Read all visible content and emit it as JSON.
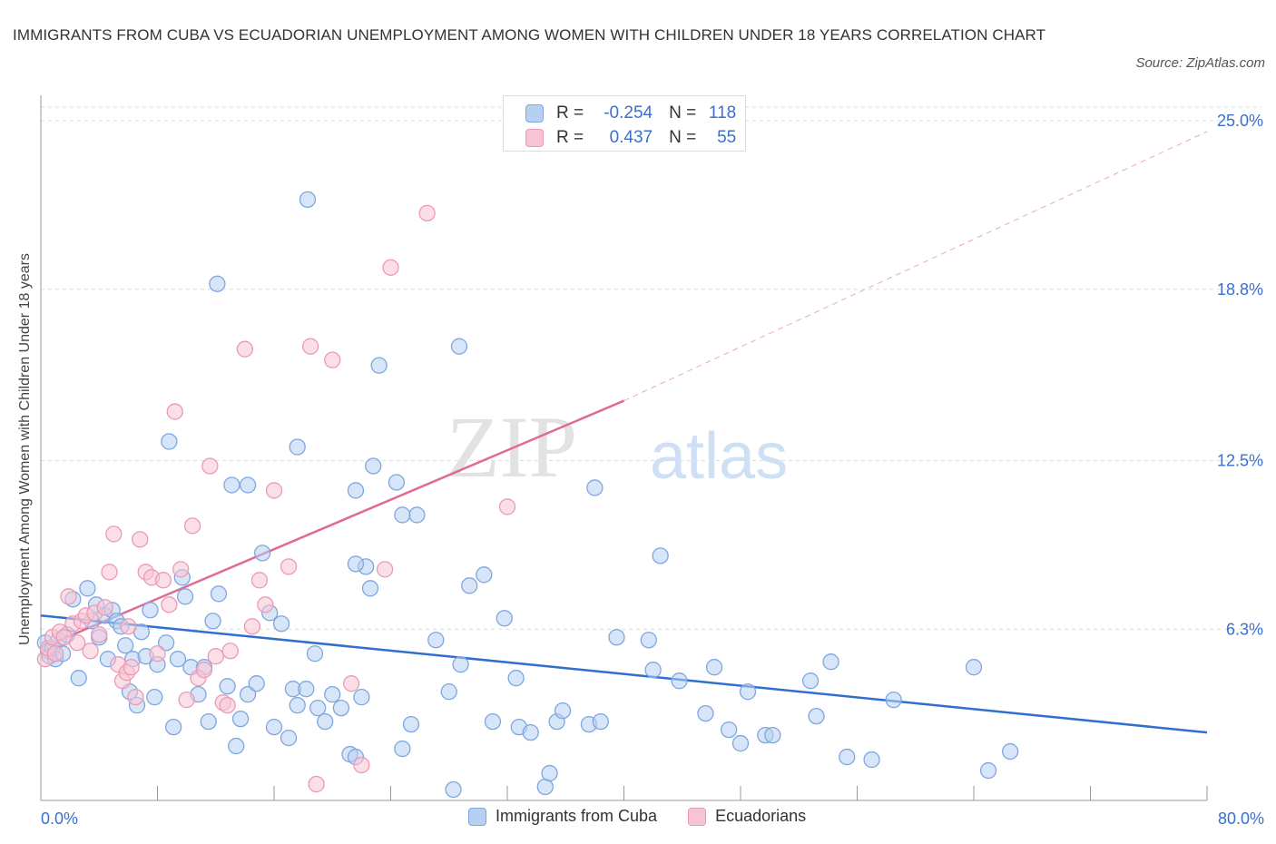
{
  "title": "IMMIGRANTS FROM CUBA VS ECUADORIAN UNEMPLOYMENT AMONG WOMEN WITH CHILDREN UNDER 18 YEARS CORRELATION CHART",
  "source": "Source: ZipAtlas.com",
  "watermark": {
    "zip": "ZIP",
    "atlas": "atlas"
  },
  "legend_top": {
    "rows": [
      {
        "r_label": "R =",
        "r_value": "-0.254",
        "n_label": "N =",
        "n_value": "118"
      },
      {
        "r_label": "R =",
        "r_value": "0.437",
        "n_label": "N =",
        "n_value": "55"
      }
    ]
  },
  "colors": {
    "blue_fill": "#b7d0f2",
    "blue_stroke": "#7fa6e0",
    "blue_line": "#2f6fd0",
    "pink_fill": "#f7c4d3",
    "pink_stroke": "#ec9ab4",
    "pink_line": "#e06a93",
    "tick_text": "#3a6fd0",
    "grid": "#dddddd"
  },
  "chart_data": {
    "type": "scatter",
    "title": "IMMIGRANTS FROM CUBA VS ECUADORIAN UNEMPLOYMENT AMONG WOMEN WITH CHILDREN UNDER 18 YEARS CORRELATION CHART",
    "xlabel": "",
    "ylabel": "Unemployment Among Women with Children Under 18 years",
    "xlim": [
      0,
      80
    ],
    "ylim": [
      0,
      25
    ],
    "x_tick_labels": [
      "0.0%",
      "80.0%"
    ],
    "y_ticks": [
      6.3,
      12.5,
      18.8,
      25.0
    ],
    "y_tick_labels": [
      "6.3%",
      "12.5%",
      "18.8%",
      "25.0%"
    ],
    "grid": "horizontal dashed",
    "legend_position": "bottom",
    "series": [
      {
        "name": "Immigrants from Cuba",
        "color": "#7fa6e0",
        "r": -0.254,
        "n": 118,
        "trend": {
          "x": [
            0,
            80
          ],
          "y": [
            6.8,
            2.5
          ]
        },
        "points": [
          [
            0.3,
            5.8
          ],
          [
            0.5,
            5.5
          ],
          [
            0.6,
            5.3
          ],
          [
            0.8,
            5.6
          ],
          [
            1.0,
            5.2
          ],
          [
            1.2,
            5.9
          ],
          [
            1.5,
            5.4
          ],
          [
            1.8,
            6.1
          ],
          [
            2.2,
            7.4
          ],
          [
            2.6,
            4.5
          ],
          [
            3.2,
            7.8
          ],
          [
            3.5,
            6.6
          ],
          [
            3.8,
            7.2
          ],
          [
            4.0,
            6.0
          ],
          [
            4.4,
            6.8
          ],
          [
            4.6,
            5.2
          ],
          [
            4.9,
            7.0
          ],
          [
            5.2,
            6.6
          ],
          [
            5.5,
            6.4
          ],
          [
            5.8,
            5.7
          ],
          [
            6.1,
            4.0
          ],
          [
            6.3,
            5.2
          ],
          [
            6.6,
            3.5
          ],
          [
            6.9,
            6.2
          ],
          [
            7.2,
            5.3
          ],
          [
            7.5,
            7.0
          ],
          [
            7.8,
            3.8
          ],
          [
            8.0,
            5.0
          ],
          [
            8.6,
            5.8
          ],
          [
            9.1,
            2.7
          ],
          [
            9.4,
            5.2
          ],
          [
            9.7,
            8.2
          ],
          [
            9.9,
            7.5
          ],
          [
            10.3,
            4.9
          ],
          [
            10.8,
            3.9
          ],
          [
            11.2,
            4.9
          ],
          [
            11.5,
            2.9
          ],
          [
            11.8,
            6.6
          ],
          [
            12.2,
            7.6
          ],
          [
            12.8,
            4.2
          ],
          [
            13.1,
            11.6
          ],
          [
            13.4,
            2.0
          ],
          [
            13.7,
            3.0
          ],
          [
            14.2,
            3.9
          ],
          [
            14.8,
            4.3
          ],
          [
            15.2,
            9.1
          ],
          [
            15.7,
            6.9
          ],
          [
            16.0,
            2.7
          ],
          [
            16.5,
            6.5
          ],
          [
            17.0,
            2.3
          ],
          [
            17.3,
            4.1
          ],
          [
            17.6,
            3.5
          ],
          [
            18.2,
            4.1
          ],
          [
            18.8,
            5.4
          ],
          [
            19.0,
            3.4
          ],
          [
            19.5,
            2.9
          ],
          [
            20.0,
            3.9
          ],
          [
            20.6,
            3.4
          ],
          [
            21.2,
            1.7
          ],
          [
            21.6,
            1.6
          ],
          [
            22.0,
            3.8
          ],
          [
            22.3,
            8.6
          ],
          [
            22.6,
            7.8
          ],
          [
            23.2,
            16.0
          ],
          [
            24.4,
            11.7
          ],
          [
            24.8,
            1.9
          ],
          [
            25.4,
            2.8
          ],
          [
            25.8,
            10.5
          ],
          [
            27.1,
            5.9
          ],
          [
            28.0,
            4.0
          ],
          [
            28.3,
            0.4
          ],
          [
            28.8,
            5.0
          ],
          [
            29.4,
            7.9
          ],
          [
            30.4,
            8.3
          ],
          [
            31.0,
            2.9
          ],
          [
            31.8,
            6.7
          ],
          [
            32.6,
            4.5
          ],
          [
            32.8,
            2.7
          ],
          [
            33.6,
            2.5
          ],
          [
            34.6,
            0.5
          ],
          [
            34.9,
            1.0
          ],
          [
            35.4,
            2.9
          ],
          [
            35.8,
            3.3
          ],
          [
            37.6,
            2.8
          ],
          [
            38.0,
            11.5
          ],
          [
            38.4,
            2.9
          ],
          [
            39.5,
            6.0
          ],
          [
            41.7,
            5.9
          ],
          [
            42.0,
            4.8
          ],
          [
            42.5,
            9.0
          ],
          [
            43.8,
            4.4
          ],
          [
            45.6,
            3.2
          ],
          [
            46.2,
            4.9
          ],
          [
            47.2,
            2.6
          ],
          [
            48.0,
            2.1
          ],
          [
            48.5,
            4.0
          ],
          [
            49.7,
            2.4
          ],
          [
            50.2,
            2.4
          ],
          [
            52.8,
            4.4
          ],
          [
            53.2,
            3.1
          ],
          [
            54.2,
            5.1
          ],
          [
            55.3,
            1.6
          ],
          [
            57.0,
            1.5
          ],
          [
            58.5,
            3.7
          ],
          [
            64.0,
            4.9
          ],
          [
            65.0,
            1.1
          ],
          [
            66.5,
            1.8
          ],
          [
            8.8,
            13.2
          ],
          [
            12.1,
            19.0
          ],
          [
            18.3,
            22.1
          ],
          [
            21.6,
            11.4
          ],
          [
            22.8,
            12.3
          ],
          [
            24.8,
            10.5
          ],
          [
            28.7,
            16.7
          ],
          [
            21.6,
            8.7
          ],
          [
            17.6,
            13.0
          ],
          [
            14.2,
            11.6
          ]
        ]
      },
      {
        "name": "Ecuadorians",
        "color": "#ec9ab4",
        "r": 0.437,
        "n": 55,
        "trend": {
          "x": [
            0,
            40
          ],
          "y": [
            5.6,
            14.7
          ]
        },
        "trend_extension": {
          "x": [
            40,
            80
          ],
          "y": [
            14.7,
            24.6
          ]
        },
        "points": [
          [
            0.3,
            5.2
          ],
          [
            0.5,
            5.6
          ],
          [
            0.8,
            6.0
          ],
          [
            1.0,
            5.4
          ],
          [
            1.3,
            6.2
          ],
          [
            1.6,
            6.0
          ],
          [
            1.9,
            7.5
          ],
          [
            2.2,
            6.5
          ],
          [
            2.5,
            5.8
          ],
          [
            2.8,
            6.6
          ],
          [
            3.1,
            6.8
          ],
          [
            3.4,
            5.5
          ],
          [
            3.7,
            6.9
          ],
          [
            4.0,
            6.1
          ],
          [
            4.4,
            7.1
          ],
          [
            4.7,
            8.4
          ],
          [
            5.0,
            9.8
          ],
          [
            5.3,
            5.0
          ],
          [
            5.6,
            4.4
          ],
          [
            5.9,
            4.7
          ],
          [
            6.2,
            4.9
          ],
          [
            6.5,
            3.8
          ],
          [
            6.8,
            9.6
          ],
          [
            7.2,
            8.4
          ],
          [
            7.6,
            8.2
          ],
          [
            8.0,
            5.4
          ],
          [
            8.4,
            8.1
          ],
          [
            8.8,
            7.2
          ],
          [
            9.2,
            14.3
          ],
          [
            9.6,
            8.5
          ],
          [
            10.0,
            3.7
          ],
          [
            10.4,
            10.1
          ],
          [
            10.8,
            4.5
          ],
          [
            11.2,
            4.8
          ],
          [
            11.6,
            12.3
          ],
          [
            12.0,
            5.3
          ],
          [
            12.5,
            3.6
          ],
          [
            13.0,
            5.5
          ],
          [
            14.0,
            16.6
          ],
          [
            14.5,
            6.4
          ],
          [
            15.0,
            8.1
          ],
          [
            15.4,
            7.2
          ],
          [
            16.0,
            11.4
          ],
          [
            17.0,
            8.6
          ],
          [
            18.5,
            16.7
          ],
          [
            18.9,
            0.6
          ],
          [
            20.0,
            16.2
          ],
          [
            21.3,
            4.3
          ],
          [
            22.0,
            1.3
          ],
          [
            23.6,
            8.5
          ],
          [
            24.0,
            19.6
          ],
          [
            26.5,
            21.6
          ],
          [
            32.0,
            10.8
          ],
          [
            6.0,
            6.4
          ],
          [
            12.8,
            3.5
          ]
        ]
      }
    ]
  }
}
